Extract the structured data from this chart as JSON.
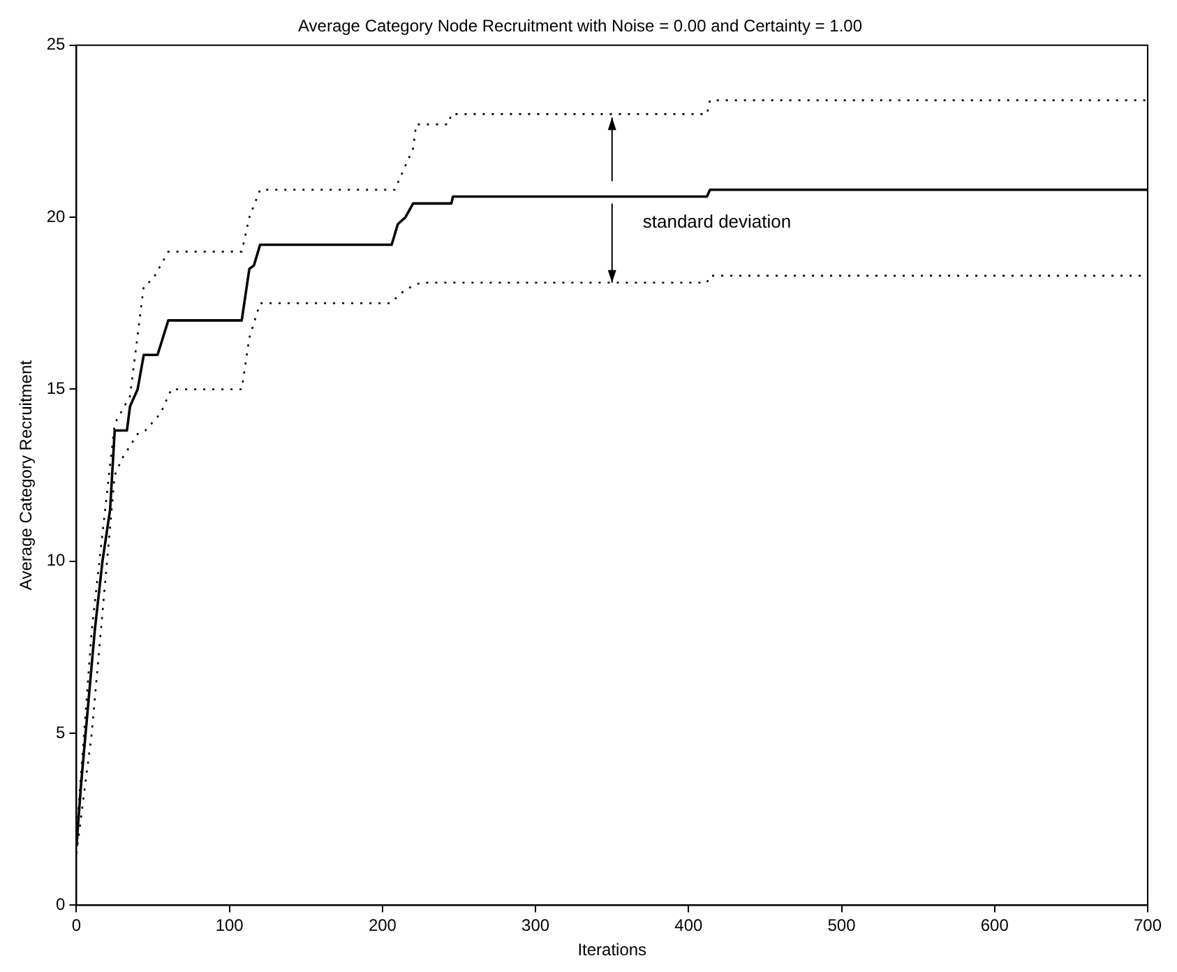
{
  "chart_data": {
    "type": "line",
    "title": "Average Category Node Recruitment with Noise = 0.00 and Certainty = 1.00",
    "xlabel": "Iterations",
    "ylabel": "Average Category Recruitment",
    "xlim": [
      0,
      700
    ],
    "xticks": [
      0,
      100,
      200,
      300,
      400,
      500,
      600,
      700
    ],
    "ylim": [
      0,
      25
    ],
    "yticks": [
      0,
      5,
      10,
      15,
      20,
      25
    ],
    "grid": false,
    "legend": false,
    "marker": "none",
    "series": [
      {
        "color": "#000000",
        "line_style": "solid",
        "x": [
          0,
          3,
          8,
          12,
          17,
          22,
          25,
          33,
          35,
          40,
          44,
          53,
          60,
          108,
          113,
          116,
          120,
          206,
          210,
          215,
          220,
          245,
          246,
          412,
          414,
          700
        ],
        "values": [
          1.7,
          3.5,
          6,
          8,
          10,
          11.5,
          13.8,
          13.8,
          14.5,
          15,
          16,
          16,
          17,
          17,
          18.5,
          18.6,
          19.2,
          19.2,
          19.8,
          20,
          20.4,
          20.4,
          20.6,
          20.6,
          20.8,
          20.8
        ]
      },
      {
        "color": "#000000",
        "line_style": "dotted",
        "x": [
          0,
          10,
          20,
          25,
          35,
          44,
          50,
          60,
          108,
          113,
          120,
          208,
          220,
          222,
          243,
          245,
          412,
          414,
          700
        ],
        "values": [
          2,
          8,
          12,
          14,
          14.8,
          18,
          18.2,
          19,
          19,
          20,
          20.8,
          20.8,
          22,
          22.7,
          22.7,
          23,
          23,
          23.4,
          23.4
        ]
      },
      {
        "color": "#000000",
        "line_style": "dotted",
        "x": [
          0,
          10,
          20,
          25,
          30,
          40,
          45,
          55,
          62,
          108,
          113,
          120,
          205,
          215,
          225,
          412,
          414,
          700
        ],
        "values": [
          1.5,
          5,
          10,
          12.5,
          13,
          13.7,
          13.8,
          14.3,
          15,
          15,
          16.5,
          17.5,
          17.5,
          17.9,
          18.1,
          18.1,
          18.3,
          18.3
        ]
      }
    ],
    "annotations": [
      "standard deviation"
    ]
  }
}
